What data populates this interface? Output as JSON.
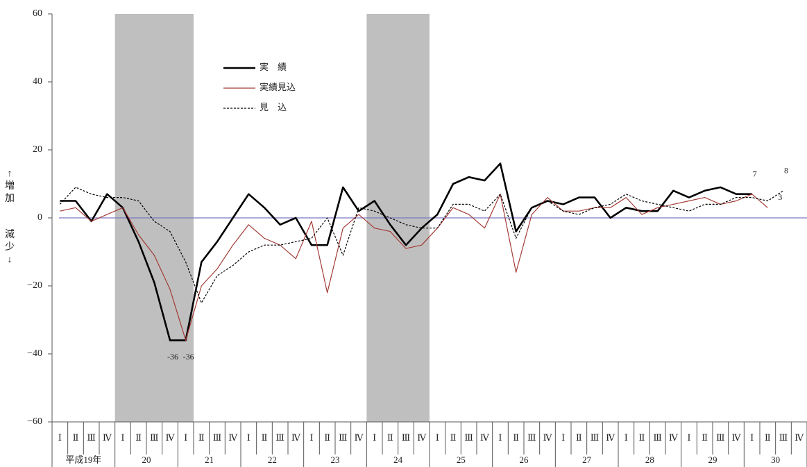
{
  "chart_data": {
    "type": "line",
    "y_label_up": "↑増加",
    "y_label_down": "減少↓",
    "categories": [
      "Ⅰ",
      "Ⅱ",
      "Ⅲ",
      "Ⅳ",
      "Ⅰ",
      "Ⅱ",
      "Ⅲ",
      "Ⅳ",
      "Ⅰ",
      "Ⅱ",
      "Ⅲ",
      "Ⅳ",
      "Ⅰ",
      "Ⅱ",
      "Ⅲ",
      "Ⅳ",
      "Ⅰ",
      "Ⅱ",
      "Ⅲ",
      "Ⅳ",
      "Ⅰ",
      "Ⅱ",
      "Ⅲ",
      "Ⅳ",
      "Ⅰ",
      "Ⅱ",
      "Ⅲ",
      "Ⅳ",
      "Ⅰ",
      "Ⅱ",
      "Ⅲ",
      "Ⅳ",
      "Ⅰ",
      "Ⅱ",
      "Ⅲ",
      "Ⅳ",
      "Ⅰ",
      "Ⅱ",
      "Ⅲ",
      "Ⅳ",
      "Ⅰ",
      "Ⅱ",
      "Ⅲ",
      "Ⅳ",
      "Ⅰ",
      "Ⅱ",
      "Ⅲ",
      "Ⅳ"
    ],
    "year_labels": [
      "平成19年",
      "20",
      "21",
      "22",
      "23",
      "24",
      "25",
      "26",
      "27",
      "28",
      "29",
      "30"
    ],
    "shaded_ranges": [
      [
        4,
        8
      ],
      [
        20,
        23
      ]
    ],
    "ylim": [
      -60,
      60
    ],
    "yticks": [
      {
        "value": -60,
        "label": "−60"
      },
      {
        "value": -40,
        "label": "−40"
      },
      {
        "value": -20,
        "label": "−20"
      },
      0,
      20,
      40,
      60
    ],
    "series": [
      {
        "name": "実　績",
        "color": "#000000",
        "style": "solid",
        "width": 2.6,
        "labeled_points": [
          7,
          8,
          44
        ],
        "values": [
          5,
          5,
          -1,
          7,
          3,
          -7,
          -19,
          -36,
          -36,
          -13,
          -7,
          0,
          7,
          3,
          -2,
          0,
          -8,
          -8,
          9,
          2,
          5,
          -2,
          -8,
          -3,
          1,
          10,
          12,
          11,
          16,
          -4,
          3,
          5,
          4,
          6,
          6,
          0,
          3,
          2,
          2,
          8,
          6,
          8,
          9,
          7,
          7,
          null,
          null,
          null
        ]
      },
      {
        "name": "実績見込",
        "color": "#a23b36",
        "style": "solid",
        "width": 1.2,
        "labeled_points": [
          45
        ],
        "values": [
          2,
          3,
          -1,
          1,
          3,
          -5,
          -11,
          -21,
          -36,
          -20,
          -15,
          -8,
          -2,
          -6,
          -8,
          -12,
          -1,
          -22,
          -3,
          1,
          -3,
          -4,
          -9,
          -8,
          -3,
          3,
          1,
          -3,
          7,
          -16,
          1,
          6,
          2,
          2,
          3,
          3,
          6,
          1,
          3,
          4,
          5,
          6,
          4,
          5,
          7,
          3,
          null,
          null
        ]
      },
      {
        "name": "見　込",
        "color": "#000000",
        "style": "dashed",
        "width": 1.2,
        "labeled_points": [
          46
        ],
        "values": [
          4,
          9,
          7,
          6,
          6,
          5,
          -1,
          -4,
          -13,
          -25,
          -17,
          -14,
          -10,
          -8,
          -8,
          -7,
          -6,
          0,
          -11,
          3,
          2,
          0,
          -2,
          -3,
          -3,
          4,
          4,
          2,
          7,
          -6,
          3,
          5,
          2,
          1,
          3,
          4,
          7,
          5,
          4,
          3,
          2,
          4,
          4,
          6,
          6,
          5,
          8,
          null
        ]
      }
    ]
  }
}
